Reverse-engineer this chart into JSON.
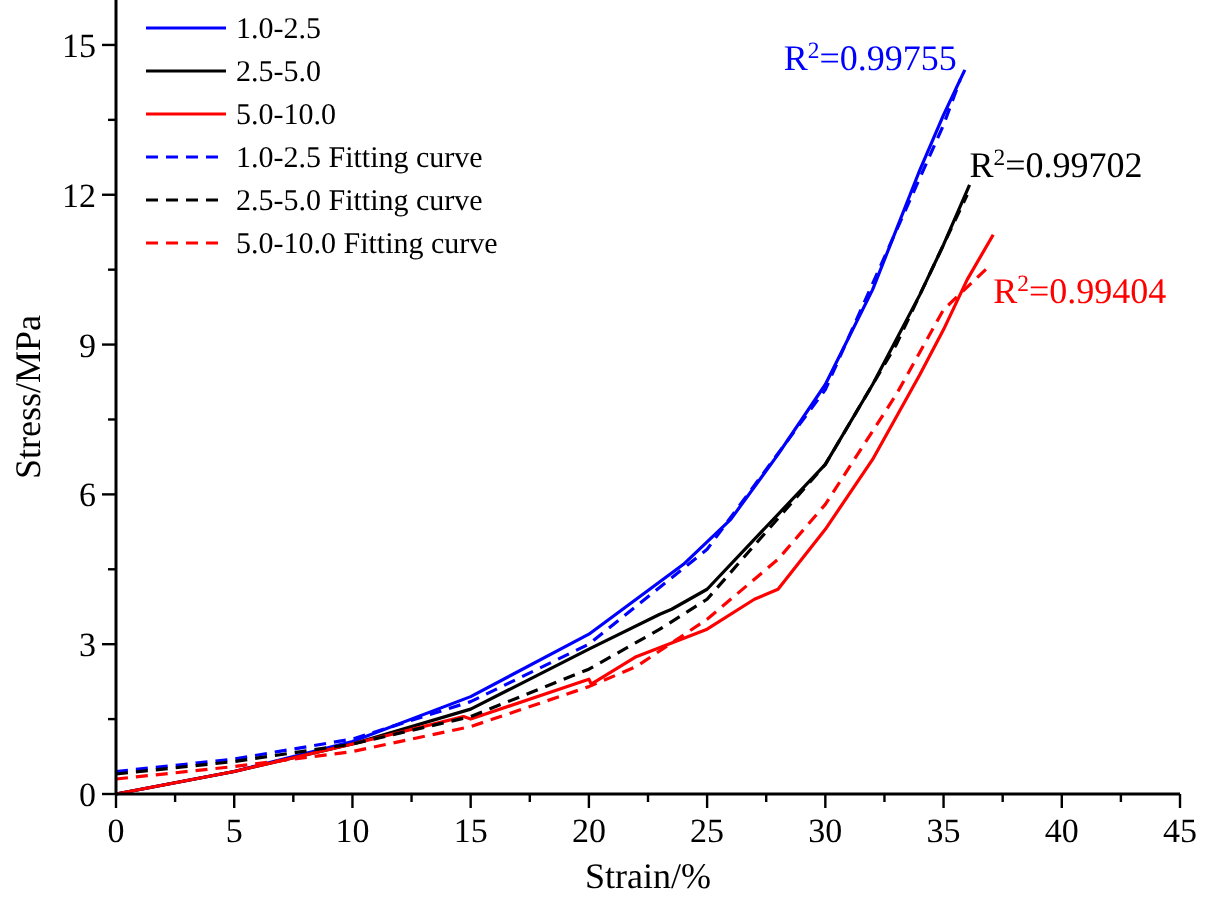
{
  "chart_data": {
    "type": "line",
    "xlabel": "Strain/%",
    "ylabel": "Stress/MPa",
    "xlim": [
      0,
      45
    ],
    "ylim": [
      0,
      15.9
    ],
    "xticks": [
      0,
      {
        "value": 2.5,
        "label": null
      },
      5,
      {
        "value": 7.5,
        "label": null
      },
      10,
      {
        "value": 12.5,
        "label": null
      },
      15,
      {
        "value": 17.5,
        "label": null
      },
      20,
      {
        "value": 22.5,
        "label": null
      },
      25,
      {
        "value": 27.5,
        "label": null
      },
      30,
      {
        "value": 32.5,
        "label": null
      },
      35,
      {
        "value": 37.5,
        "label": null
      },
      40,
      {
        "value": 42.5,
        "label": null
      },
      45
    ],
    "yticks": [
      0,
      {
        "value": 1.5,
        "label": null
      },
      3,
      {
        "value": 4.5,
        "label": null
      },
      6,
      {
        "value": 7.5,
        "label": null
      },
      9,
      {
        "value": 10.5,
        "label": null
      },
      12,
      {
        "value": 13.5,
        "label": null
      },
      15
    ],
    "grid": false,
    "legend": "top left",
    "marker": "none",
    "series": [
      {
        "name": "1.0-2.5",
        "color": "#0000ff",
        "line_style": "solid",
        "x": [
          0,
          5,
          10,
          15,
          20,
          24,
          26,
          28,
          30,
          32,
          34,
          35,
          35.9
        ],
        "values": [
          0,
          0.45,
          1.05,
          1.95,
          3.2,
          4.6,
          5.5,
          6.8,
          8.2,
          10.1,
          12.5,
          13.6,
          14.5
        ]
      },
      {
        "name": "2.5-5.0",
        "color": "#000000",
        "line_style": "solid",
        "x": [
          0,
          5,
          10,
          15,
          20,
          23,
          23.5,
          25,
          28,
          30,
          32,
          34,
          35,
          36.1
        ],
        "values": [
          0,
          0.45,
          1.0,
          1.7,
          2.9,
          3.6,
          3.7,
          4.1,
          5.6,
          6.6,
          8.2,
          10.0,
          11.0,
          12.2
        ]
      },
      {
        "name": "5.0-10.0",
        "color": "#ff0000",
        "line_style": "solid",
        "x": [
          0,
          5,
          10,
          14.7,
          15,
          20,
          20.1,
          22,
          25,
          27,
          28,
          30,
          32,
          34,
          35,
          36,
          37.1
        ],
        "values": [
          0,
          0.45,
          1.0,
          1.55,
          1.5,
          2.3,
          2.2,
          2.75,
          3.3,
          3.9,
          4.1,
          5.3,
          6.7,
          8.4,
          9.3,
          10.3,
          11.2
        ]
      },
      {
        "name": "1.0-2.5 Fitting curve",
        "color": "#0000ff",
        "line_style": "dashed",
        "x": [
          0,
          5,
          10,
          15,
          20,
          25,
          30,
          35,
          35.7
        ],
        "values": [
          0.45,
          0.7,
          1.1,
          1.85,
          3.0,
          4.9,
          8.1,
          13.4,
          14.3
        ]
      },
      {
        "name": "2.5-5.0 Fitting curve",
        "color": "#000000",
        "line_style": "dashed",
        "x": [
          0,
          5,
          10,
          15,
          20,
          23,
          25,
          30,
          33,
          35,
          36
        ],
        "values": [
          0.4,
          0.65,
          1.0,
          1.55,
          2.5,
          3.3,
          3.9,
          6.6,
          9.0,
          11.0,
          12.0
        ]
      },
      {
        "name": "5.0-10.0 Fitting curve",
        "color": "#ff0000",
        "line_style": "dashed",
        "x": [
          0,
          5,
          10,
          15,
          20,
          22,
          25,
          28,
          30,
          33,
          35,
          37
        ],
        "values": [
          0.3,
          0.55,
          0.85,
          1.35,
          2.15,
          2.55,
          3.5,
          4.7,
          5.8,
          8.0,
          9.7,
          10.6
        ]
      }
    ],
    "annotations": [
      {
        "text": "R$^{2}$=0.99755",
        "x": 35.9,
        "y": 14.5
      },
      {
        "text": "R$^{2}$=0.99702",
        "x": 36.1,
        "y": 12.2
      },
      {
        "text": "R$^{2}$=0.99404",
        "x": 37.1,
        "y": 11.2
      }
    ]
  }
}
